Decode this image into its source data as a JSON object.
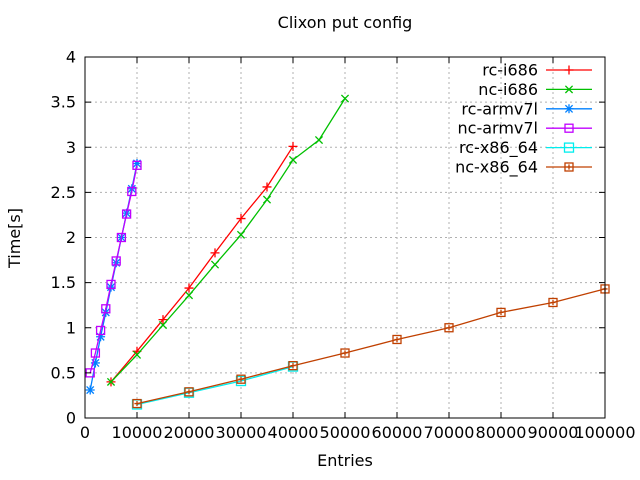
{
  "chart_data": {
    "type": "line",
    "title": "Clixon put config",
    "xlabel": "Entries",
    "ylabel": "Time[s]",
    "xlim": [
      0,
      100000
    ],
    "ylim": [
      0,
      4
    ],
    "grid": true,
    "legend_position": "top-right-inside",
    "background_color": "#ffffff",
    "grid_color": "#b0b0b0",
    "border_color": "#000000",
    "xtick_values": [
      0,
      10000,
      20000,
      30000,
      40000,
      50000,
      60000,
      70000,
      80000,
      90000,
      100000
    ],
    "xtick_labels": [
      "0",
      "10000",
      "20000",
      "30000",
      "40000",
      "50000",
      "60000",
      "70000",
      "80000",
      "90000",
      "100000"
    ],
    "ytick_values": [
      0,
      0.5,
      1,
      1.5,
      2,
      2.5,
      3,
      3.5,
      4
    ],
    "ytick_labels": [
      "0",
      "0.5",
      "1",
      "1.5",
      "2",
      "2.5",
      "3",
      "3.5",
      "4"
    ],
    "series": [
      {
        "name": "rc-i686",
        "color": "#ff0000",
        "marker": "plus",
        "x": [
          5000,
          10000,
          15000,
          20000,
          25000,
          30000,
          35000,
          40000
        ],
        "y": [
          0.4,
          0.74,
          1.09,
          1.44,
          1.83,
          2.21,
          2.56,
          3.01
        ]
      },
      {
        "name": "nc-i686",
        "color": "#00c000",
        "marker": "cross",
        "x": [
          5000,
          10000,
          15000,
          20000,
          25000,
          30000,
          35000,
          40000,
          45000,
          50000
        ],
        "y": [
          0.4,
          0.7,
          1.03,
          1.36,
          1.7,
          2.03,
          2.42,
          2.86,
          3.08,
          3.54
        ]
      },
      {
        "name": "rc-armv7l",
        "color": "#0080ff",
        "marker": "asterisk",
        "x": [
          1000,
          2000,
          3000,
          4000,
          5000,
          6000,
          7000,
          8000,
          9000,
          10000
        ],
        "y": [
          0.31,
          0.61,
          0.9,
          1.17,
          1.45,
          1.72,
          2.0,
          2.27,
          2.54,
          2.82
        ]
      },
      {
        "name": "nc-armv7l",
        "color": "#c000ff",
        "marker": "square-open",
        "x": [
          1000,
          2000,
          3000,
          4000,
          5000,
          6000,
          7000,
          8000,
          9000,
          10000
        ],
        "y": [
          0.5,
          0.72,
          0.97,
          1.21,
          1.48,
          1.74,
          2.0,
          2.26,
          2.51,
          2.8
        ]
      },
      {
        "name": "rc-x86_64",
        "color": "#00eeee",
        "marker": "square-filled",
        "x": [
          10000,
          20000,
          30000,
          40000
        ],
        "y": [
          0.15,
          0.28,
          0.41,
          0.57
        ]
      },
      {
        "name": "nc-x86_64",
        "color": "#c04000",
        "marker": "square-plus",
        "x": [
          10000,
          20000,
          30000,
          40000,
          50000,
          60000,
          70000,
          80000,
          90000,
          100000
        ],
        "y": [
          0.16,
          0.29,
          0.43,
          0.58,
          0.72,
          0.87,
          1.0,
          1.17,
          1.28,
          1.43
        ]
      }
    ]
  }
}
